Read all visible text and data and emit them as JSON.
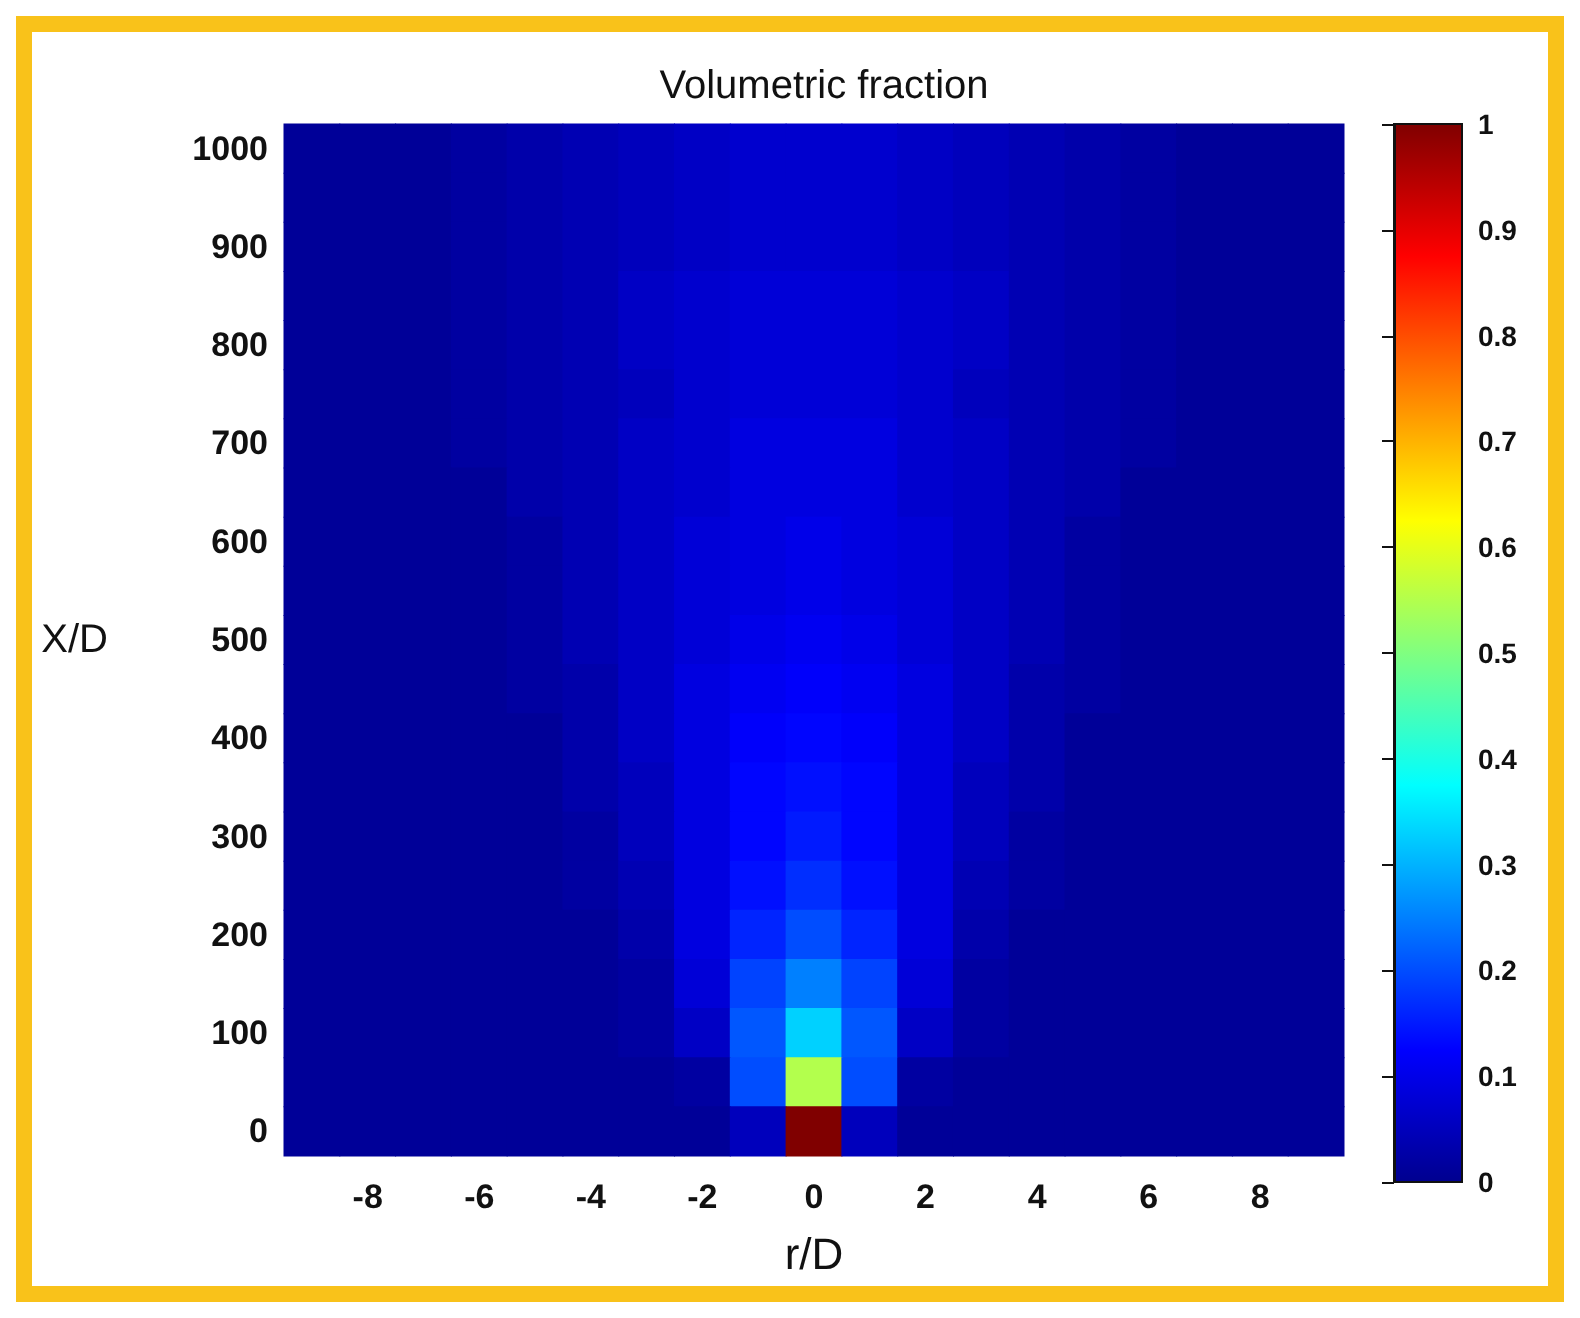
{
  "chart_data": {
    "type": "heatmap",
    "title": "Volumetric fraction",
    "xlabel": "r/D",
    "ylabel": "X/D",
    "categories": [
      null,
      "-8",
      null,
      "-6",
      null,
      "-4",
      null,
      "-2",
      null,
      "0",
      null,
      "2",
      null,
      "4",
      null,
      "6",
      null,
      "8",
      null
    ],
    "y_categories": [
      "1000",
      null,
      "900",
      null,
      "800",
      null,
      "700",
      null,
      "600",
      null,
      "500",
      null,
      "400",
      null,
      "300",
      null,
      "200",
      null,
      "100",
      null,
      "0"
    ],
    "cells": [
      [
        0.01,
        0.01,
        0.01,
        0.02,
        0.03,
        0.04,
        0.05,
        0.06,
        0.07,
        0.07,
        0.07,
        0.06,
        0.05,
        0.04,
        0.03,
        0.02,
        0.01,
        0.01,
        0.01
      ],
      [
        0.01,
        0.01,
        0.01,
        0.02,
        0.03,
        0.04,
        0.05,
        0.06,
        0.07,
        0.07,
        0.07,
        0.06,
        0.05,
        0.04,
        0.03,
        0.02,
        0.01,
        0.01,
        0.01
      ],
      [
        0.01,
        0.01,
        0.01,
        0.02,
        0.03,
        0.04,
        0.05,
        0.06,
        0.07,
        0.07,
        0.07,
        0.06,
        0.05,
        0.04,
        0.03,
        0.02,
        0.01,
        0.01,
        0.01
      ],
      [
        0.01,
        0.01,
        0.01,
        0.02,
        0.03,
        0.04,
        0.06,
        0.07,
        0.08,
        0.08,
        0.08,
        0.07,
        0.06,
        0.04,
        0.03,
        0.02,
        0.01,
        0.01,
        0.01
      ],
      [
        0.01,
        0.01,
        0.01,
        0.02,
        0.03,
        0.04,
        0.06,
        0.07,
        0.08,
        0.08,
        0.08,
        0.07,
        0.06,
        0.04,
        0.03,
        0.02,
        0.01,
        0.01,
        0.01
      ],
      [
        0.01,
        0.01,
        0.01,
        0.02,
        0.03,
        0.04,
        0.05,
        0.07,
        0.08,
        0.08,
        0.08,
        0.07,
        0.05,
        0.04,
        0.03,
        0.02,
        0.01,
        0.01,
        0.01
      ],
      [
        0.01,
        0.01,
        0.01,
        0.02,
        0.03,
        0.04,
        0.06,
        0.07,
        0.09,
        0.09,
        0.09,
        0.07,
        0.06,
        0.04,
        0.03,
        0.02,
        0.01,
        0.01,
        0.01
      ],
      [
        0.01,
        0.01,
        0.01,
        0.01,
        0.03,
        0.04,
        0.06,
        0.07,
        0.09,
        0.09,
        0.09,
        0.07,
        0.06,
        0.04,
        0.03,
        0.01,
        0.01,
        0.01,
        0.01
      ],
      [
        0.01,
        0.01,
        0.01,
        0.01,
        0.02,
        0.04,
        0.06,
        0.08,
        0.09,
        0.1,
        0.09,
        0.08,
        0.06,
        0.04,
        0.02,
        0.01,
        0.01,
        0.01,
        0.01
      ],
      [
        0.01,
        0.01,
        0.01,
        0.01,
        0.02,
        0.04,
        0.06,
        0.08,
        0.09,
        0.1,
        0.09,
        0.08,
        0.06,
        0.04,
        0.02,
        0.01,
        0.01,
        0.01,
        0.01
      ],
      [
        0.01,
        0.01,
        0.01,
        0.01,
        0.02,
        0.04,
        0.06,
        0.08,
        0.1,
        0.11,
        0.1,
        0.08,
        0.06,
        0.04,
        0.02,
        0.01,
        0.01,
        0.01,
        0.01
      ],
      [
        0.01,
        0.01,
        0.01,
        0.01,
        0.02,
        0.03,
        0.06,
        0.09,
        0.11,
        0.12,
        0.11,
        0.09,
        0.06,
        0.03,
        0.02,
        0.01,
        0.01,
        0.01,
        0.01
      ],
      [
        0.01,
        0.01,
        0.01,
        0.01,
        0.01,
        0.03,
        0.06,
        0.09,
        0.12,
        0.13,
        0.12,
        0.09,
        0.06,
        0.03,
        0.01,
        0.01,
        0.01,
        0.01,
        0.01
      ],
      [
        0.01,
        0.01,
        0.01,
        0.01,
        0.01,
        0.03,
        0.05,
        0.09,
        0.13,
        0.14,
        0.13,
        0.09,
        0.05,
        0.03,
        0.01,
        0.01,
        0.01,
        0.01,
        0.01
      ],
      [
        0.01,
        0.01,
        0.01,
        0.01,
        0.01,
        0.02,
        0.05,
        0.09,
        0.13,
        0.15,
        0.13,
        0.09,
        0.05,
        0.02,
        0.01,
        0.01,
        0.01,
        0.01,
        0.01
      ],
      [
        0.01,
        0.01,
        0.01,
        0.01,
        0.01,
        0.02,
        0.04,
        0.09,
        0.14,
        0.17,
        0.14,
        0.09,
        0.04,
        0.02,
        0.01,
        0.01,
        0.01,
        0.01,
        0.01
      ],
      [
        0.01,
        0.01,
        0.01,
        0.01,
        0.01,
        0.01,
        0.03,
        0.09,
        0.16,
        0.2,
        0.16,
        0.09,
        0.03,
        0.01,
        0.01,
        0.01,
        0.01,
        0.01,
        0.01
      ],
      [
        0.01,
        0.01,
        0.01,
        0.01,
        0.01,
        0.01,
        0.02,
        0.08,
        0.19,
        0.25,
        0.19,
        0.08,
        0.02,
        0.01,
        0.01,
        0.01,
        0.01,
        0.01,
        0.01
      ],
      [
        0.01,
        0.01,
        0.01,
        0.01,
        0.01,
        0.01,
        0.02,
        0.06,
        0.21,
        0.33,
        0.21,
        0.06,
        0.02,
        0.01,
        0.01,
        0.01,
        0.01,
        0.01,
        0.01
      ],
      [
        0.01,
        0.01,
        0.01,
        0.01,
        0.01,
        0.01,
        0.01,
        0.02,
        0.2,
        0.55,
        0.2,
        0.02,
        0.01,
        0.01,
        0.01,
        0.01,
        0.01,
        0.01,
        0.01
      ],
      [
        0.01,
        0.01,
        0.01,
        0.01,
        0.01,
        0.01,
        0.01,
        0.01,
        0.05,
        1,
        0.05,
        0.01,
        0.01,
        0.01,
        0.01,
        0.01,
        0.01,
        0.01,
        0.01
      ]
    ],
    "clim": [
      0,
      1
    ],
    "cticks": [
      0,
      0.1,
      0.2,
      0.3,
      0.4,
      0.5,
      0.6,
      0.7,
      0.8,
      0.9,
      1
    ]
  }
}
